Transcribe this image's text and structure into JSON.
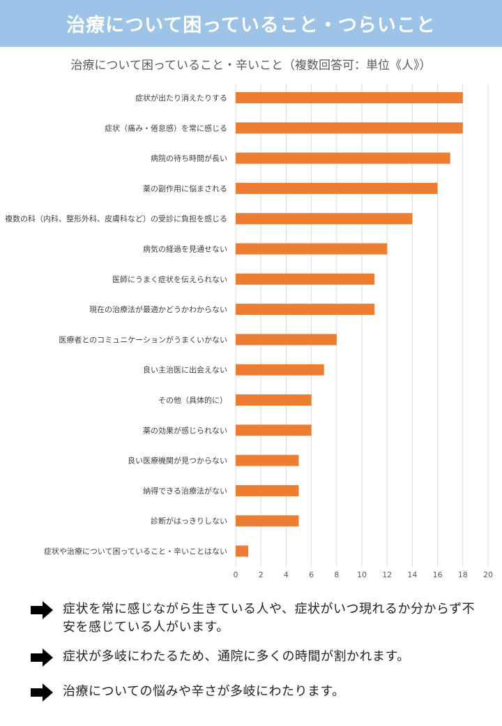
{
  "banner": {
    "title": "治療について困っていること・つらいこと"
  },
  "chart_data": {
    "type": "bar",
    "orientation": "horizontal",
    "title": "治療について困っていること・辛いこと（複数回答可：単位《人》）",
    "categories": [
      "症状が出たり消えたりする",
      "症状（痛み・倦怠感）を常に感じる",
      "病院の待ち時間が長い",
      "薬の副作用に悩まされる",
      "複数の科（内科、整形外科、皮膚科など）の受診に負担を感じる",
      "病気の経過を見通せない",
      "医師にうまく症状を伝えられない",
      "現在の治療法が最適かどうかわからない",
      "医療者とのコミュニケーションがうまくいかない",
      "良い主治医に出会えない",
      "その他（具体的に）",
      "薬の効果が感じられない",
      "良い医療機関が見つからない",
      "納得できる治療法がない",
      "診断がはっきりしない",
      "症状や治療について困っていること・辛いことはない"
    ],
    "values": [
      18,
      18,
      17,
      16,
      14,
      12,
      11,
      11,
      8,
      7,
      6,
      6,
      5,
      5,
      5,
      1
    ],
    "xlim": [
      0,
      20
    ],
    "xticks": [
      "0",
      "2",
      "4",
      "6",
      "8",
      "10",
      "12",
      "14",
      "16",
      "18",
      "20"
    ],
    "grid": true,
    "bar_color": "#ed7d31",
    "grid_color": "#d9d9d9"
  },
  "notes": [
    {
      "text": "症状を常に感じながら生きている人や、症状がいつ現れるか分からず不安を感じている人がいます。",
      "icon": "right-arrow-icon"
    },
    {
      "text": "症状が多岐にわたるため、通院に多くの時間が割かれます。",
      "icon": "right-arrow-icon"
    },
    {
      "text": "治療についての悩みや辛さが多岐にわたります。",
      "icon": "right-arrow-icon"
    }
  ]
}
